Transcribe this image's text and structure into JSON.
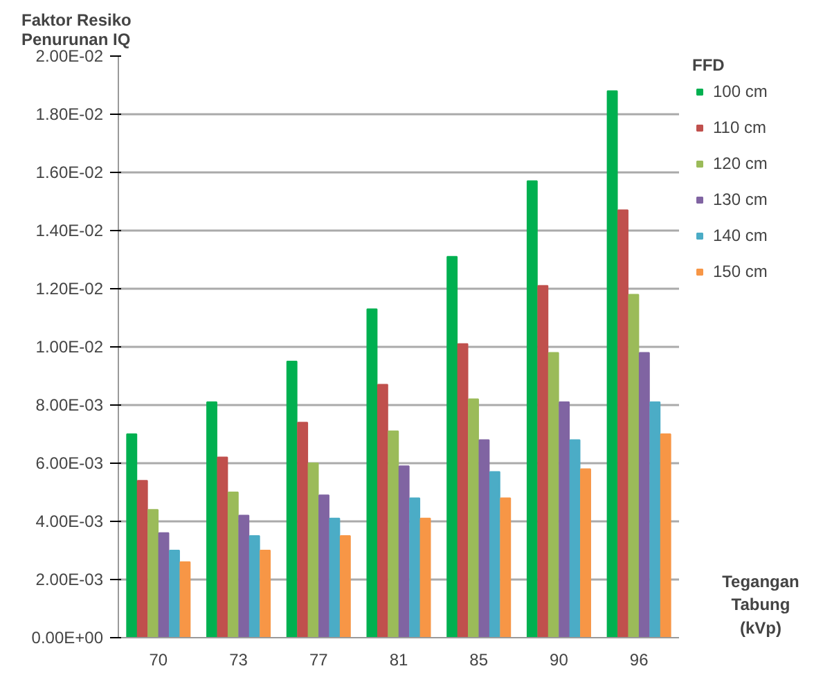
{
  "chart_data": {
    "type": "bar",
    "ylabel": "Faktor Resiko\nPenurunan IQ",
    "xlabel": "Tegangan\nTabung\n(kVp)",
    "legend_title": "FFD",
    "categories": [
      "70",
      "73",
      "77",
      "81",
      "85",
      "90",
      "96"
    ],
    "series": [
      {
        "name": "100 cm",
        "color": "#00b050",
        "values": [
          0.007,
          0.0081,
          0.0095,
          0.0113,
          0.0131,
          0.0157,
          0.0188
        ]
      },
      {
        "name": "110 cm",
        "color": "#c0504d",
        "values": [
          0.0054,
          0.0062,
          0.0074,
          0.0087,
          0.0101,
          0.0121,
          0.0147
        ]
      },
      {
        "name": "120 cm",
        "color": "#9bbb59",
        "values": [
          0.0044,
          0.005,
          0.006,
          0.0071,
          0.0082,
          0.0098,
          0.0118
        ]
      },
      {
        "name": "130 cm",
        "color": "#8064a2",
        "values": [
          0.0036,
          0.0042,
          0.0049,
          0.0059,
          0.0068,
          0.0081,
          0.0098
        ]
      },
      {
        "name": "140 cm",
        "color": "#4bacc6",
        "values": [
          0.003,
          0.0035,
          0.0041,
          0.0048,
          0.0057,
          0.0068,
          0.0081
        ]
      },
      {
        "name": "150 cm",
        "color": "#f79646",
        "values": [
          0.0026,
          0.003,
          0.0035,
          0.0041,
          0.0048,
          0.0058,
          0.007
        ]
      }
    ],
    "ylim": [
      0,
      0.02
    ],
    "yticks": [
      {
        "value": 0,
        "label": "0.00E+00"
      },
      {
        "value": 0.002,
        "label": "2.00E-03"
      },
      {
        "value": 0.004,
        "label": "4.00E-03"
      },
      {
        "value": 0.006,
        "label": "6.00E-03"
      },
      {
        "value": 0.008,
        "label": "8.00E-03"
      },
      {
        "value": 0.01,
        "label": "1.00E-02"
      },
      {
        "value": 0.012,
        "label": "1.20E-02"
      },
      {
        "value": 0.014,
        "label": "1.40E-02"
      },
      {
        "value": 0.016,
        "label": "1.60E-02"
      },
      {
        "value": 0.018,
        "label": "1.80E-02"
      },
      {
        "value": 0.02,
        "label": "2.00E-02"
      }
    ],
    "grid": "y",
    "legend": "right"
  }
}
